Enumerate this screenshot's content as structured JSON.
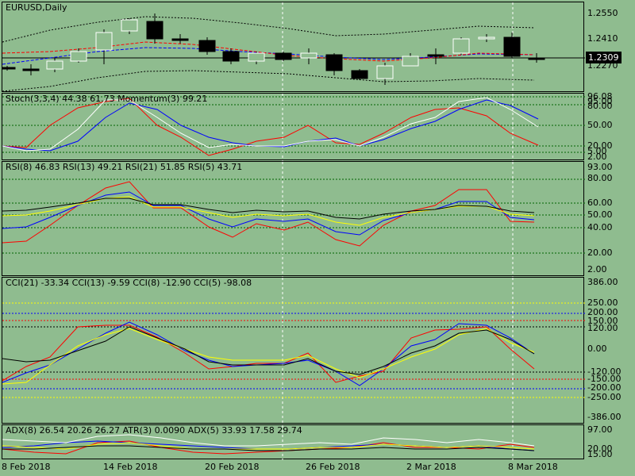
{
  "symbol_title": "EURUSD,Daily",
  "current_price": "1.2309",
  "price_axis": [
    "1.2550",
    "1.2410",
    "1.2270"
  ],
  "stoch": {
    "title": "Stoch(3,3,4) 44.38 61.73 Momentum(3) 99.21",
    "axis": [
      "96.08",
      "95.00",
      "80.00",
      "50.00",
      "20.00",
      "5.00",
      "2.00"
    ]
  },
  "rsi": {
    "title": "RSI(8) 46.83 RSI(13) 49.21 RSI(21) 51.85 RSI(5) 43.71",
    "axis": [
      "93.00",
      "80.00",
      "60.00",
      "50.00",
      "40.00",
      "20.00",
      "2.00"
    ]
  },
  "cci": {
    "title": "CCI(21) -33.34 CCI(13) -9.59 CCI(8) -12.90 CCI(5) -98.08",
    "axis": [
      "386.00",
      "250.00",
      "200.00",
      "150.00",
      "120.00",
      "0.00",
      "-120.00",
      "-150.00",
      "-200.00",
      "-250.00",
      "-386.00"
    ]
  },
  "adx": {
    "title": "ADX(8) 26.54 20.26 26.27 ATR(3) 0.0090 ADX(5) 33.93 17.58 29.74",
    "axis": [
      "97.00",
      "20.00",
      "15.00"
    ]
  },
  "x_dates": [
    "8 Feb 2018",
    "14 Feb 2018",
    "20 Feb 2018",
    "26 Feb 2018",
    "2 Mar 2018",
    "8 Mar 2018"
  ],
  "colors": {
    "bg": "#8fbc8f",
    "red": "#ff0000",
    "blue": "#0000ff",
    "yellow": "#ffff00",
    "white": "#ffffff",
    "black": "#000000"
  }
}
